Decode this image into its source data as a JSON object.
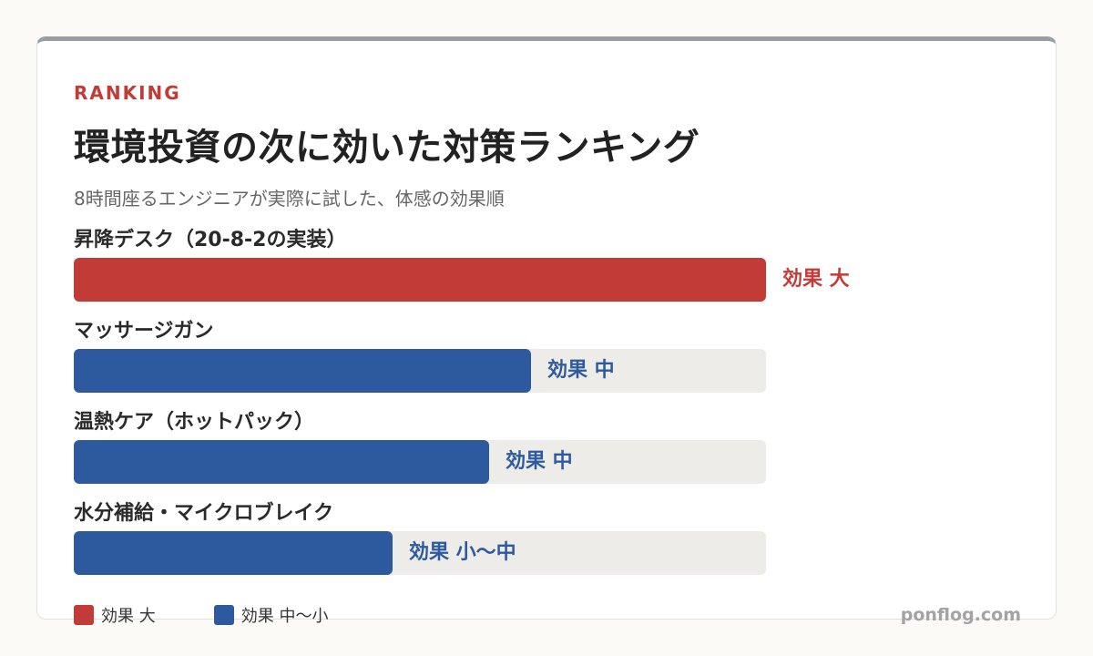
{
  "header": {
    "eyebrow": "RANKING",
    "title": "環境投資の次に効いた対策ランキング",
    "subtitle": "8時間座るエンジニアが実際に試した、体感の効果順"
  },
  "chart_data": {
    "type": "bar",
    "orientation": "horizontal",
    "categories": [
      "昇降デスク（20-8-2の実装）",
      "マッサージガン",
      "温熱ケア（ホットパック）",
      "水分補給・マイクロブレイク"
    ],
    "values": [
      1.0,
      0.66,
      0.6,
      0.46
    ],
    "value_labels": [
      "効果 大",
      "効果 中",
      "効果 中",
      "効果 小〜中"
    ],
    "series_colors": [
      "#c23b37",
      "#2d5a9e",
      "#2d5a9e",
      "#2d5a9e"
    ],
    "track_color": "#eeece8",
    "xlim": [
      0,
      1
    ],
    "legend": [
      {
        "label": "効果 大",
        "color": "#c23b37"
      },
      {
        "label": "効果 中〜小",
        "color": "#2d5a9e"
      }
    ],
    "legend_position": "bottom-left",
    "grid": false
  },
  "footer": {
    "brand": "ponflog.com"
  }
}
